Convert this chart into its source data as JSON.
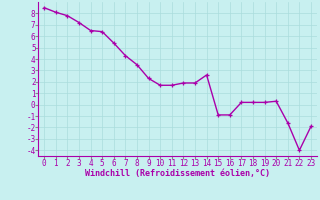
{
  "x": [
    0,
    1,
    2,
    3,
    4,
    5,
    6,
    7,
    8,
    9,
    10,
    11,
    12,
    13,
    14,
    15,
    16,
    17,
    18,
    19,
    20,
    21,
    22,
    23
  ],
  "y": [
    8.5,
    8.1,
    7.8,
    7.2,
    6.5,
    6.4,
    5.4,
    4.3,
    3.5,
    2.3,
    1.7,
    1.7,
    1.9,
    1.9,
    2.6,
    -0.9,
    -0.9,
    0.2,
    0.2,
    0.2,
    0.3,
    -1.6,
    -4.0,
    -1.9
  ],
  "line_color": "#aa00aa",
  "marker": "+",
  "marker_color": "#aa00aa",
  "bg_color": "#c8f0f0",
  "grid_color": "#aadddd",
  "xlabel": "Windchill (Refroidissement éolien,°C)",
  "ylim": [
    -4.5,
    9.0
  ],
  "xlim": [
    -0.5,
    23.5
  ],
  "yticks": [
    -4,
    -3,
    -2,
    -1,
    0,
    1,
    2,
    3,
    4,
    5,
    6,
    7,
    8
  ],
  "xticks": [
    0,
    1,
    2,
    3,
    4,
    5,
    6,
    7,
    8,
    9,
    10,
    11,
    12,
    13,
    14,
    15,
    16,
    17,
    18,
    19,
    20,
    21,
    22,
    23
  ],
  "tick_label_color": "#aa00aa",
  "xlabel_color": "#aa00aa",
  "xlabel_fontsize": 6.0,
  "tick_fontsize": 5.5,
  "line_width": 1.0,
  "marker_size": 3.5
}
